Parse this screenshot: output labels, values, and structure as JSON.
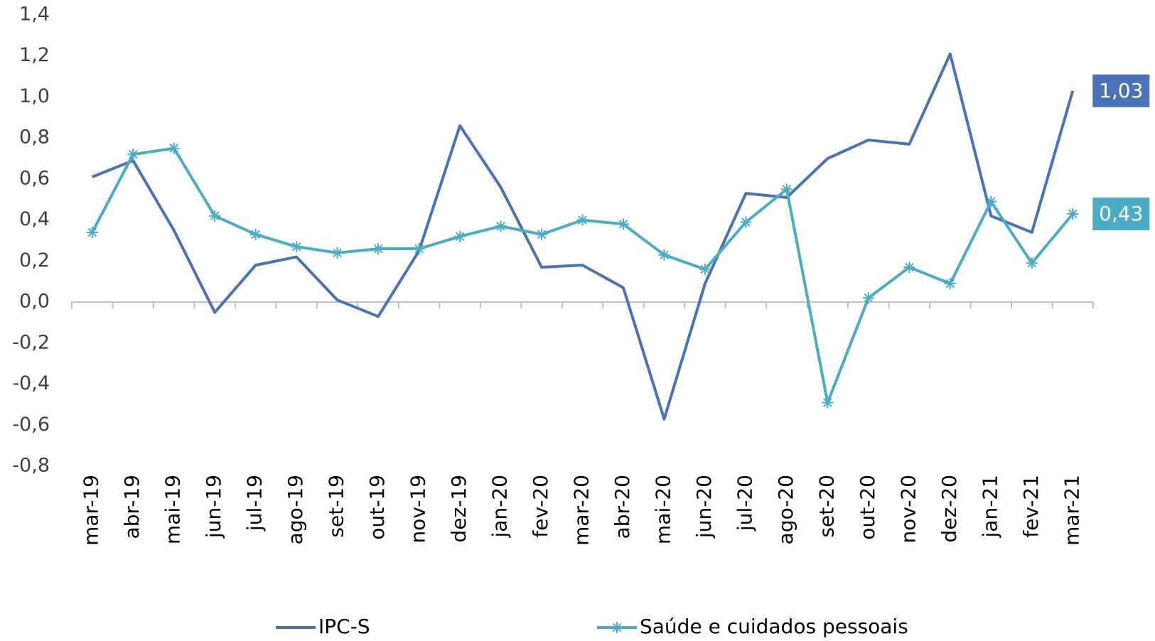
{
  "chart_data": {
    "type": "line",
    "categories": [
      "mar-19",
      "abr-19",
      "mai-19",
      "jun-19",
      "jul-19",
      "ago-19",
      "set-19",
      "out-19",
      "nov-19",
      "dez-19",
      "jan-20",
      "fev-20",
      "mar-20",
      "abr-20",
      "mai-20",
      "jun-20",
      "jul-20",
      "ago-20",
      "set-20",
      "out-20",
      "nov-20",
      "dez-20",
      "jan-21",
      "fev-21",
      "mar-21"
    ],
    "series": [
      {
        "name": "IPC-S",
        "color": "#4a72b8",
        "marker": "none",
        "values": [
          0.61,
          0.69,
          0.35,
          -0.05,
          0.18,
          0.22,
          0.01,
          -0.07,
          0.25,
          0.86,
          0.56,
          0.17,
          0.18,
          0.07,
          -0.57,
          0.09,
          0.53,
          0.51,
          0.7,
          0.79,
          0.77,
          1.21,
          0.42,
          0.34,
          1.03
        ],
        "value_labels": [
          null,
          null,
          null,
          null,
          null,
          null,
          null,
          null,
          null,
          null,
          null,
          null,
          null,
          null,
          null,
          null,
          null,
          null,
          null,
          null,
          null,
          null,
          null,
          null,
          "1,03"
        ]
      },
      {
        "name": "Saúde e cuidados pessoais",
        "color": "#4bacc6",
        "marker": "asterisk",
        "values": [
          0.34,
          0.72,
          0.75,
          0.42,
          0.33,
          0.27,
          0.24,
          0.26,
          0.26,
          0.32,
          0.37,
          0.33,
          0.4,
          0.38,
          0.23,
          0.16,
          0.39,
          0.55,
          -0.49,
          0.02,
          0.17,
          0.09,
          0.49,
          0.19,
          0.43
        ],
        "value_labels": [
          null,
          null,
          null,
          null,
          null,
          null,
          null,
          null,
          null,
          null,
          null,
          null,
          null,
          null,
          null,
          null,
          null,
          null,
          null,
          null,
          null,
          null,
          null,
          null,
          "0,43"
        ]
      }
    ],
    "ylim": [
      -0.8,
      1.4
    ],
    "yticks": [
      {
        "value": -0.8,
        "label": "-0,8"
      },
      {
        "value": -0.6,
        "label": "-0,6"
      },
      {
        "value": -0.4,
        "label": "-0,4"
      },
      {
        "value": -0.2,
        "label": "-0,2"
      },
      {
        "value": 0,
        "label": "0,0"
      },
      {
        "value": 0.2,
        "label": "0,2"
      },
      {
        "value": 0.4,
        "label": "0,4"
      },
      {
        "value": 0.6,
        "label": "0,6"
      },
      {
        "value": 0.8,
        "label": "0,8"
      },
      {
        "value": 1.0,
        "label": "1,0"
      },
      {
        "value": 1.2,
        "label": "1,2"
      },
      {
        "value": 1.4,
        "label": "1,4"
      }
    ],
    "grid": false,
    "legend": "bottom"
  }
}
